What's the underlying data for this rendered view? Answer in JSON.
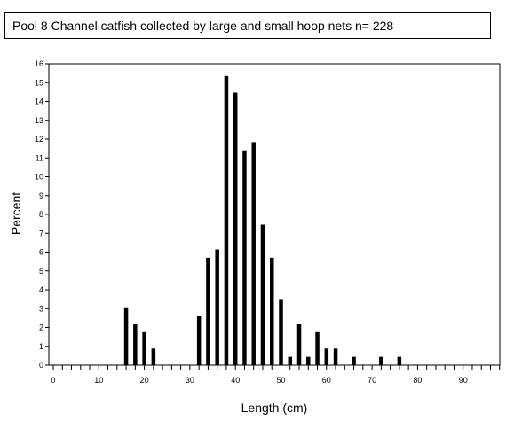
{
  "chart_data": {
    "type": "bar",
    "title": "Pool 8 Channel catfish collected by large and small hoop nets n= 228",
    "xlabel": "Length (cm)",
    "ylabel": "Percent",
    "xlim": [
      0,
      98
    ],
    "ylim": [
      0,
      16
    ],
    "x_ticks": [
      0,
      10,
      20,
      30,
      40,
      50,
      60,
      70,
      80,
      90
    ],
    "y_ticks": [
      0,
      1,
      2,
      3,
      4,
      5,
      6,
      7,
      8,
      9,
      10,
      11,
      12,
      13,
      14,
      15,
      16
    ],
    "grid": false,
    "series": [
      {
        "x": [
          16,
          18,
          20,
          22,
          32,
          34,
          36,
          38,
          40,
          42,
          44,
          46,
          48,
          50,
          52,
          54,
          56,
          58,
          60,
          62,
          66,
          72,
          76
        ],
        "values": [
          3.07,
          2.19,
          1.75,
          0.88,
          2.63,
          5.7,
          6.14,
          15.35,
          14.47,
          11.4,
          11.84,
          7.46,
          5.7,
          3.51,
          0.44,
          2.19,
          0.44,
          1.75,
          0.88,
          0.88,
          0.44,
          0.44,
          0.44
        ]
      }
    ]
  }
}
